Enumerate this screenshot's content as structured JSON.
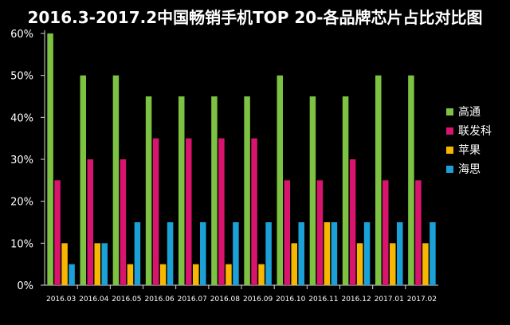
{
  "chart_data": {
    "type": "bar",
    "title": "2016.3-2017.2中国畅销手机TOP 20-各品牌芯片占比对比图",
    "categories": [
      "2016.03",
      "2016.04",
      "2016.05",
      "2016.06",
      "2016.07",
      "2016.08",
      "2016.09",
      "2016.10",
      "2016.11",
      "2016.12",
      "2017.01",
      "2017.02"
    ],
    "series": [
      {
        "name": "高通",
        "color": "#7dc242",
        "values": [
          60,
          50,
          50,
          45,
          45,
          45,
          45,
          50,
          45,
          45,
          50,
          50
        ]
      },
      {
        "name": "联发科",
        "color": "#d8146e",
        "values": [
          25,
          30,
          30,
          35,
          35,
          35,
          35,
          25,
          25,
          30,
          25,
          25
        ]
      },
      {
        "name": "苹果",
        "color": "#f7b700",
        "values": [
          10,
          10,
          5,
          5,
          5,
          5,
          5,
          10,
          15,
          10,
          10,
          10
        ]
      },
      {
        "name": "海思",
        "color": "#1ba1d8",
        "values": [
          5,
          10,
          15,
          15,
          15,
          15,
          15,
          15,
          15,
          15,
          15,
          15
        ]
      }
    ],
    "y_ticks": [
      "0%",
      "10%",
      "20%",
      "30%",
      "40%",
      "50%",
      "60%"
    ],
    "ylim": [
      0,
      60
    ],
    "legend_position": "right",
    "grid": false
  }
}
